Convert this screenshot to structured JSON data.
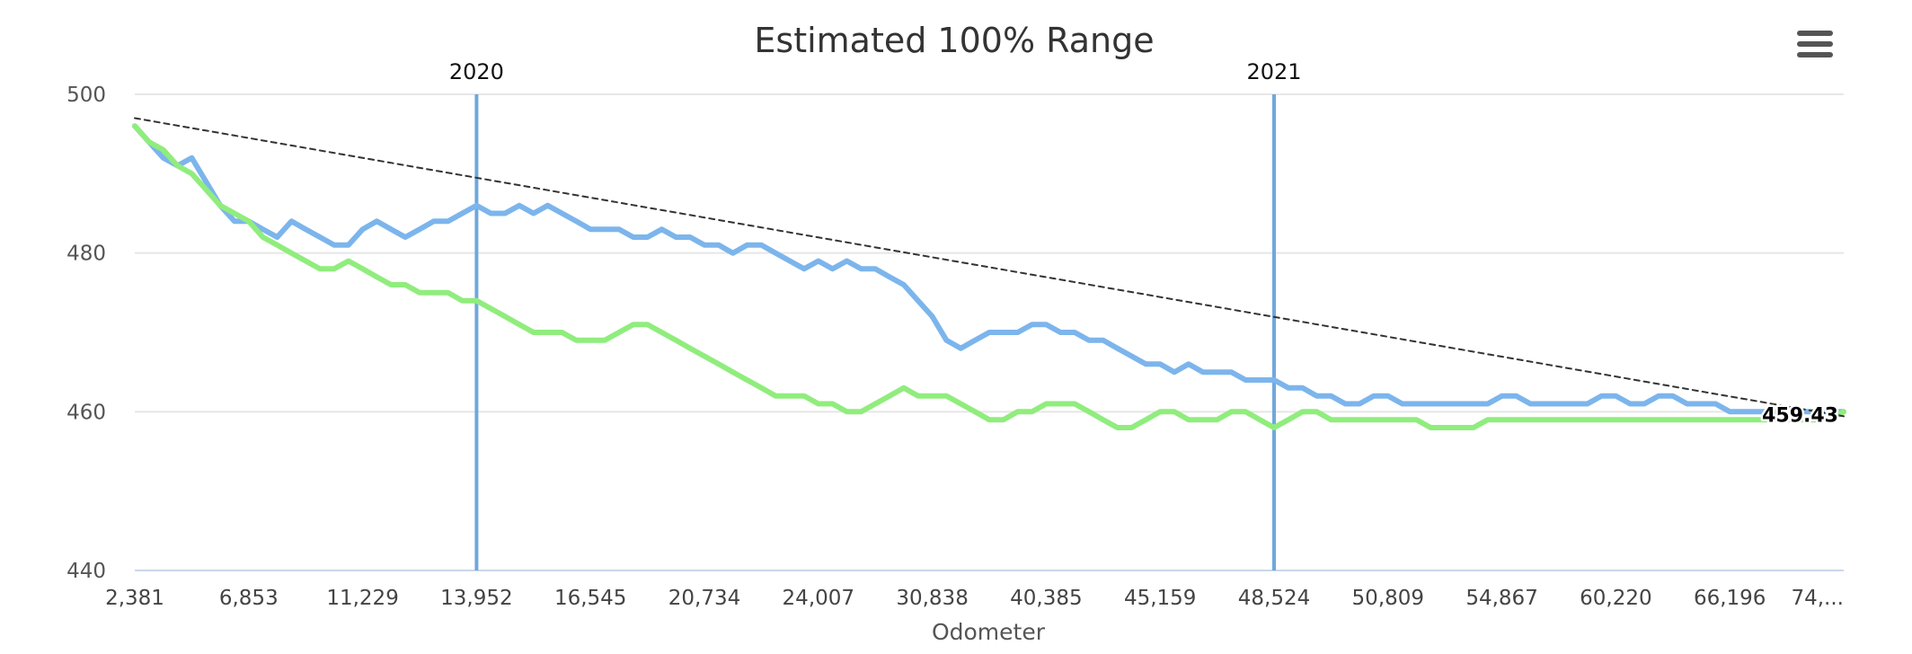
{
  "chart_data": {
    "type": "line",
    "title": "Estimated 100% Range",
    "xlabel": "Odometer",
    "ylabel": "",
    "x_tick_labels": [
      "2,381",
      "6,853",
      "11,229",
      "13,952",
      "16,545",
      "20,734",
      "24,007",
      "30,838",
      "40,385",
      "45,159",
      "48,524",
      "50,809",
      "54,867",
      "60,220",
      "66,196",
      "74,..."
    ],
    "ylim": [
      440,
      500
    ],
    "y_ticks": [
      440,
      460,
      480,
      500
    ],
    "grid": true,
    "legend": "none",
    "plot_bands": [
      {
        "label": "2020",
        "tick_index": 3
      },
      {
        "label": "2021",
        "tick_index": 10
      }
    ],
    "series": [
      {
        "color": "#7cb5ec",
        "values": [
          496,
          494,
          492,
          491,
          492,
          489,
          486,
          484,
          484,
          483,
          482,
          484,
          483,
          482,
          481,
          481,
          483,
          484,
          483,
          482,
          483,
          484,
          484,
          485,
          486,
          485,
          485,
          486,
          485,
          486,
          485,
          484,
          483,
          483,
          483,
          482,
          482,
          483,
          482,
          482,
          481,
          481,
          480,
          481,
          481,
          480,
          479,
          478,
          479,
          478,
          479,
          478,
          478,
          477,
          476,
          474,
          472,
          469,
          468,
          469,
          470,
          470,
          470,
          471,
          471,
          470,
          470,
          469,
          469,
          468,
          467,
          466,
          466,
          465,
          466,
          465,
          465,
          465,
          464,
          464,
          464,
          463,
          463,
          462,
          462,
          461,
          461,
          462,
          462,
          461,
          461,
          461,
          461,
          461,
          461,
          461,
          462,
          462,
          461,
          461,
          461,
          461,
          461,
          462,
          462,
          461,
          461,
          462,
          462,
          461,
          461,
          461,
          460,
          460,
          460,
          460,
          460,
          460,
          460,
          460,
          460
        ]
      },
      {
        "color": "#90ed7d",
        "values": [
          496,
          494,
          493,
          491,
          490,
          488,
          486,
          485,
          484,
          482,
          481,
          480,
          479,
          478,
          478,
          479,
          478,
          477,
          476,
          476,
          475,
          475,
          475,
          474,
          474,
          473,
          472,
          471,
          470,
          470,
          470,
          469,
          469,
          469,
          470,
          471,
          471,
          470,
          469,
          468,
          467,
          466,
          465,
          464,
          463,
          462,
          462,
          462,
          461,
          461,
          460,
          460,
          461,
          462,
          463,
          462,
          462,
          462,
          461,
          460,
          459,
          459,
          460,
          460,
          461,
          461,
          461,
          460,
          459,
          458,
          458,
          459,
          460,
          460,
          459,
          459,
          459,
          460,
          460,
          459,
          458,
          459,
          460,
          460,
          459,
          459,
          459,
          459,
          459,
          459,
          459,
          458,
          458,
          458,
          458,
          459,
          459,
          459,
          459,
          459,
          459,
          459,
          459,
          459,
          459,
          459,
          459,
          459,
          459,
          459,
          459,
          459,
          459,
          459,
          459,
          459,
          459,
          459,
          459,
          459,
          460
        ]
      },
      {
        "color": "#333333",
        "dashed": true,
        "values": [
          497,
          459.43
        ],
        "end_label": "459.43"
      }
    ]
  },
  "menu": {
    "icon": "hamburger-menu-icon"
  }
}
